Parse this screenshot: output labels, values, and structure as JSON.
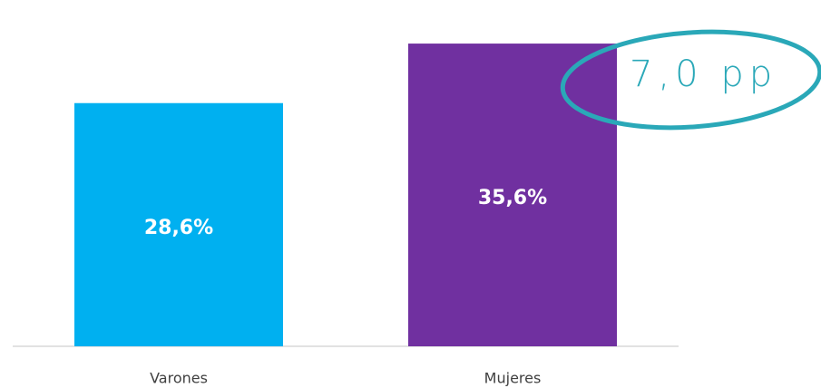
{
  "chart_data": {
    "type": "bar",
    "categories": [
      "Varones",
      "Mujeres"
    ],
    "values": [
      28.6,
      35.6
    ],
    "value_labels": [
      "28,6%",
      "35,6%"
    ],
    "colors": [
      "#00b0f0",
      "#7030a0"
    ],
    "annotation": "7,0 pp"
  }
}
